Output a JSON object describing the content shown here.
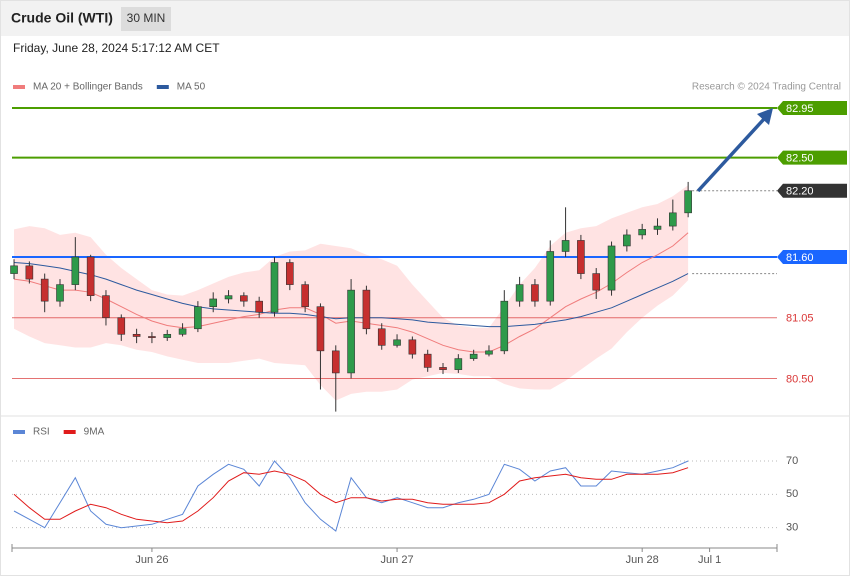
{
  "header": {
    "title": "Crude Oil (WTI)",
    "timeframe": "30 MIN",
    "timestamp": "Friday, June 28, 2024 5:17:12 AM CET"
  },
  "chart_data": [
    {
      "type": "candlestick",
      "annotation": "Research © 2024 Trading Central",
      "up_color": "#2e9a4a",
      "down_color": "#c62f2f",
      "xlim": [
        -13.7,
        61.2
      ],
      "ylim": [
        80.16,
        83.04
      ],
      "x": [
        -13.5,
        -12,
        -10.5,
        -9,
        -7.5,
        -6,
        -4.5,
        -3,
        -1.5,
        0,
        1.5,
        3,
        4.5,
        6,
        7.5,
        9,
        10.5,
        12,
        13.5,
        15,
        16.5,
        18,
        19.5,
        21,
        22.5,
        24,
        25.5,
        27,
        28.5,
        30,
        31.5,
        33,
        34.5,
        36,
        37.5,
        39,
        40.5,
        42,
        43.5,
        45,
        46.5,
        48,
        49.5,
        51,
        52.5
      ],
      "open": [
        81.45,
        81.52,
        81.4,
        81.2,
        81.35,
        81.6,
        81.25,
        81.05,
        80.9,
        80.88,
        80.87,
        80.9,
        80.95,
        81.15,
        81.22,
        81.25,
        81.2,
        81.1,
        81.55,
        81.35,
        81.15,
        80.75,
        80.55,
        81.3,
        80.95,
        80.8,
        80.85,
        80.72,
        80.6,
        80.58,
        80.68,
        80.72,
        80.75,
        81.2,
        81.35,
        81.2,
        81.65,
        81.75,
        81.45,
        81.3,
        81.7,
        81.8,
        81.85,
        81.88,
        82.0
      ],
      "high": [
        81.58,
        81.56,
        81.45,
        81.4,
        81.78,
        81.62,
        81.3,
        81.08,
        80.95,
        80.92,
        80.94,
        81.0,
        81.2,
        81.28,
        81.3,
        81.28,
        81.24,
        81.6,
        81.58,
        81.38,
        81.18,
        80.8,
        81.4,
        81.34,
        81.0,
        80.9,
        80.88,
        80.76,
        80.64,
        80.72,
        80.76,
        80.8,
        81.3,
        81.42,
        81.4,
        81.75,
        82.05,
        81.8,
        81.5,
        81.74,
        81.85,
        81.9,
        81.95,
        82.12,
        82.28
      ],
      "low": [
        81.4,
        81.36,
        81.1,
        81.15,
        81.3,
        81.2,
        80.98,
        80.84,
        80.82,
        80.82,
        80.84,
        80.88,
        80.92,
        81.1,
        81.18,
        81.15,
        81.05,
        81.06,
        81.3,
        81.1,
        80.4,
        80.2,
        80.5,
        80.9,
        80.76,
        80.78,
        80.68,
        80.56,
        80.54,
        80.55,
        80.66,
        80.7,
        80.72,
        81.15,
        81.15,
        81.16,
        81.6,
        81.4,
        81.22,
        81.25,
        81.65,
        81.76,
        81.8,
        81.84,
        81.96
      ],
      "close": [
        81.52,
        81.4,
        81.2,
        81.35,
        81.6,
        81.25,
        81.05,
        80.9,
        80.88,
        80.87,
        80.9,
        80.95,
        81.15,
        81.22,
        81.25,
        81.2,
        81.1,
        81.55,
        81.35,
        81.15,
        80.75,
        80.55,
        81.3,
        80.95,
        80.8,
        80.85,
        80.72,
        80.6,
        80.58,
        80.68,
        80.72,
        80.75,
        81.2,
        81.35,
        81.2,
        81.65,
        81.75,
        81.45,
        81.3,
        81.7,
        81.8,
        81.85,
        81.88,
        82.0,
        82.2
      ],
      "overlays": [
        {
          "name": "MA 20 + Bollinger Bands",
          "color": "#f07c7c",
          "band_color": "#ffd9d9",
          "values": [
            81.4,
            81.38,
            81.34,
            81.3,
            81.3,
            81.28,
            81.22,
            81.15,
            81.08,
            81.02,
            80.98,
            80.96,
            80.97,
            81.0,
            81.03,
            81.06,
            81.08,
            81.12,
            81.14,
            81.14,
            81.08,
            81.0,
            81.02,
            81.0,
            80.98,
            80.96,
            80.92,
            80.86,
            80.8,
            80.76,
            80.74,
            80.74,
            80.8,
            80.88,
            80.95,
            81.05,
            81.15,
            81.22,
            81.28,
            81.36,
            81.46,
            81.55,
            81.62,
            81.7,
            81.82
          ],
          "upper": [
            81.85,
            81.88,
            81.86,
            81.8,
            81.82,
            81.78,
            81.62,
            81.5,
            81.4,
            81.3,
            81.26,
            81.25,
            81.3,
            81.36,
            81.42,
            81.46,
            81.48,
            81.6,
            81.65,
            81.66,
            81.72,
            81.7,
            81.68,
            81.62,
            81.58,
            81.52,
            81.35,
            81.2,
            81.05,
            80.98,
            80.96,
            80.96,
            81.15,
            81.35,
            81.5,
            81.7,
            81.82,
            81.86,
            81.88,
            81.95,
            82.0,
            82.05,
            82.08,
            82.15,
            82.25
          ],
          "lower": [
            80.95,
            80.88,
            80.82,
            80.8,
            80.78,
            80.78,
            80.82,
            80.8,
            80.76,
            80.74,
            80.7,
            80.67,
            80.64,
            80.64,
            80.64,
            80.66,
            80.68,
            80.64,
            80.63,
            80.62,
            80.44,
            80.3,
            80.36,
            80.38,
            80.38,
            80.4,
            80.49,
            80.52,
            80.55,
            80.54,
            80.52,
            80.52,
            80.45,
            80.41,
            80.4,
            80.4,
            80.48,
            80.58,
            80.68,
            80.77,
            80.92,
            81.05,
            81.16,
            81.25,
            81.39
          ]
        },
        {
          "name": "MA 50",
          "color": "#2d5a9e",
          "values": [
            81.55,
            81.54,
            81.52,
            81.5,
            81.47,
            81.44,
            81.4,
            81.35,
            81.3,
            81.26,
            81.22,
            81.18,
            81.15,
            81.13,
            81.12,
            81.11,
            81.1,
            81.09,
            81.09,
            81.08,
            81.06,
            81.04,
            81.05,
            81.05,
            81.05,
            81.04,
            81.03,
            81.01,
            81.0,
            80.99,
            80.98,
            80.97,
            80.97,
            80.98,
            80.99,
            81.01,
            81.03,
            81.06,
            81.1,
            81.14,
            81.2,
            81.26,
            81.32,
            81.38,
            81.45
          ]
        }
      ],
      "levels": [
        {
          "value": 82.95,
          "label": "82.95",
          "color": "#4c9e00",
          "line": "solid",
          "tag": "box"
        },
        {
          "value": 82.5,
          "label": "82.50",
          "color": "#4c9e00",
          "line": "solid",
          "tag": "box"
        },
        {
          "value": 82.2,
          "label": "82.20",
          "color": "#333333",
          "line": "dotted",
          "tag": "box"
        },
        {
          "value": 81.6,
          "label": "81.60",
          "color": "#1a66ff",
          "line": "solid",
          "tag": "box"
        },
        {
          "value": 81.05,
          "label": "81.05",
          "color": "#d93636",
          "line": "thin",
          "tag": "text"
        },
        {
          "value": 80.5,
          "label": "80.50",
          "color": "#d93636",
          "line": "thin",
          "tag": "text"
        }
      ]
    },
    {
      "type": "line",
      "xlim": [
        -13.7,
        61.2
      ],
      "ylim": [
        19,
        82
      ],
      "yticks": [
        70,
        50,
        30
      ],
      "xticks": [
        {
          "value": 0,
          "label": "Jun 26"
        },
        {
          "value": 24,
          "label": "Jun 27"
        },
        {
          "value": 48,
          "label": "Jun 28"
        },
        {
          "value": 54.6,
          "label": "Jul 1"
        }
      ],
      "x": [
        -13.5,
        -12,
        -10.5,
        -9,
        -7.5,
        -6,
        -4.5,
        -3,
        -1.5,
        0,
        1.5,
        3,
        4.5,
        6,
        7.5,
        9,
        10.5,
        12,
        13.5,
        15,
        16.5,
        18,
        19.5,
        21,
        22.5,
        24,
        25.5,
        27,
        28.5,
        30,
        31.5,
        33,
        34.5,
        36,
        37.5,
        39,
        40.5,
        42,
        43.5,
        45,
        46.5,
        48,
        49.5,
        51,
        52.5
      ],
      "series": [
        {
          "name": "RSI",
          "color": "#5b86d6",
          "values": [
            40,
            35,
            30,
            45,
            60,
            40,
            32,
            30,
            31,
            32,
            35,
            38,
            55,
            62,
            68,
            65,
            55,
            70,
            60,
            45,
            35,
            28,
            60,
            48,
            45,
            48,
            45,
            42,
            42,
            45,
            47,
            50,
            68,
            65,
            58,
            64,
            66,
            55,
            55,
            64,
            63,
            62,
            64,
            66,
            70
          ]
        },
        {
          "name": "9MA",
          "color": "#e01b1b",
          "values": [
            50,
            42,
            35,
            35,
            40,
            44,
            42,
            38,
            35,
            34,
            33,
            34,
            40,
            48,
            58,
            63,
            62,
            64,
            62,
            58,
            50,
            45,
            48,
            48,
            46,
            47,
            47,
            45,
            44,
            44,
            44,
            45,
            50,
            58,
            60,
            61,
            62,
            60,
            59,
            59,
            62,
            62,
            62,
            63,
            66
          ]
        }
      ]
    }
  ]
}
